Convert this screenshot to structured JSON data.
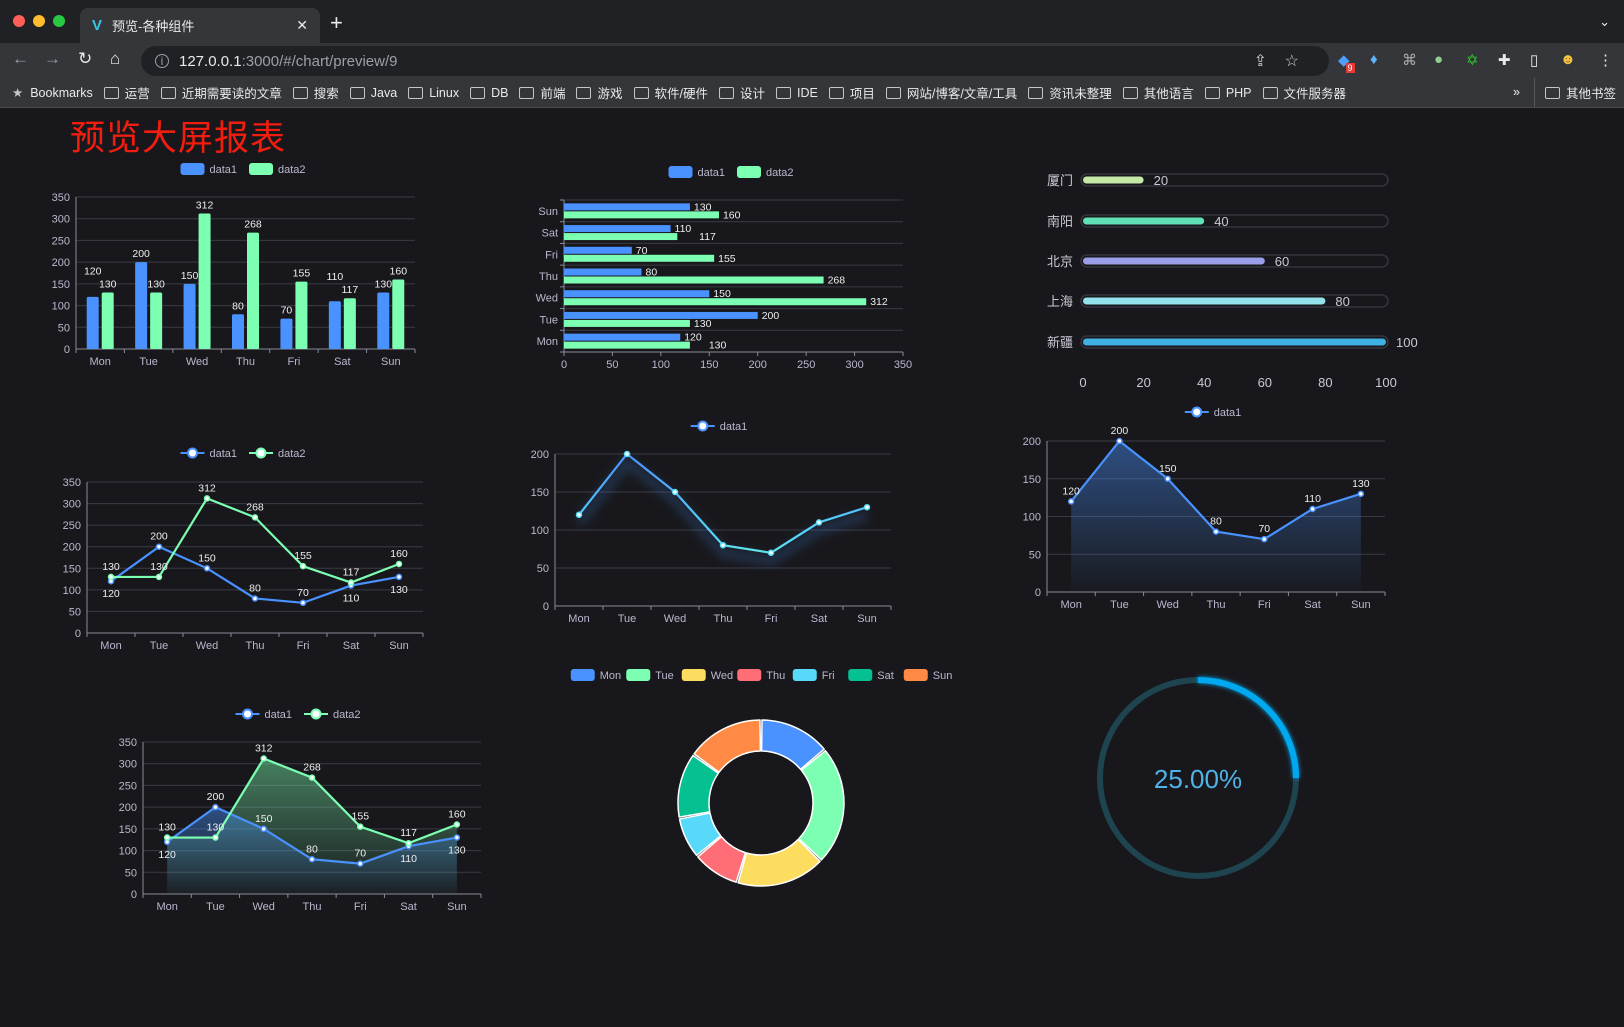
{
  "browser": {
    "tab_title": "预览-各种组件",
    "tab_icon": "vue-logo-icon",
    "url_host": "127.0.0.1",
    "url_rest": ":3000/#/chart/preview/9",
    "extension_badge": "9",
    "bookmarks": [
      "Bookmarks",
      "运营",
      "近期需要读的文章",
      "搜索",
      "Java",
      "Linux",
      "DB",
      "前端",
      "游戏",
      "软件/硬件",
      "设计",
      "IDE",
      "项目",
      "网站/博客/文章/工具",
      "资讯未整理",
      "其他语言",
      "PHP",
      "文件服务器"
    ],
    "bookmarks_overflow": "»",
    "other_bookmarks": "其他书签"
  },
  "page": {
    "title": "预览大屏报表",
    "title_color": "#f21d0f"
  },
  "colors": {
    "data1": "#4992ff",
    "data2": "#7cffb2",
    "pie": [
      "#4992ff",
      "#7cffb2",
      "#fddd60",
      "#ff6e76",
      "#58d9f9",
      "#05c091",
      "#ff8a45"
    ]
  },
  "chart_data": [
    {
      "type": "bar",
      "legend": [
        "data1",
        "data2"
      ],
      "categories": [
        "Mon",
        "Tue",
        "Wed",
        "Thu",
        "Fri",
        "Sat",
        "Sun"
      ],
      "series": [
        {
          "name": "data1",
          "values": [
            120,
            200,
            150,
            80,
            70,
            110,
            130
          ]
        },
        {
          "name": "data2",
          "values": [
            130,
            130,
            312,
            268,
            155,
            117,
            160
          ]
        }
      ],
      "ylim": [
        0,
        350
      ],
      "yticks": [
        "0",
        "50",
        "100",
        "150",
        "200",
        "250",
        "300",
        "350"
      ],
      "grid": true,
      "data_labels": true,
      "legend_position": "top"
    },
    {
      "type": "bar",
      "orientation": "horizontal",
      "legend": [
        "data1",
        "data2"
      ],
      "categories": [
        "Mon",
        "Tue",
        "Wed",
        "Thu",
        "Fri",
        "Sat",
        "Sun"
      ],
      "series": [
        {
          "name": "data1",
          "values": [
            120,
            200,
            150,
            80,
            70,
            110,
            130
          ]
        },
        {
          "name": "data2",
          "values": [
            130,
            130,
            312,
            268,
            155,
            117,
            160
          ]
        }
      ],
      "xlim": [
        0,
        350
      ],
      "xticks": [
        "0",
        "50",
        "100",
        "150",
        "200",
        "250",
        "300",
        "350"
      ],
      "grid": true,
      "data_labels": true,
      "legend_position": "top"
    },
    {
      "type": "bar",
      "orientation": "horizontal",
      "variant": "progress",
      "categories": [
        "厦门",
        "南阳",
        "北京",
        "上海",
        "新疆"
      ],
      "values": [
        20,
        40,
        60,
        80,
        100
      ],
      "xlim": [
        0,
        100
      ],
      "xticks": [
        "0",
        "20",
        "40",
        "60",
        "80",
        "100"
      ],
      "colors": [
        "#c5e8a6",
        "#5fe0b5",
        "#9a9ee8",
        "#93e3ec",
        "#3fb1e3"
      ]
    },
    {
      "type": "line",
      "legend": [
        "data1",
        "data2"
      ],
      "categories": [
        "Mon",
        "Tue",
        "Wed",
        "Thu",
        "Fri",
        "Sat",
        "Sun"
      ],
      "series": [
        {
          "name": "data1",
          "values": [
            120,
            200,
            150,
            80,
            70,
            110,
            130
          ]
        },
        {
          "name": "data2",
          "values": [
            130,
            130,
            312,
            268,
            155,
            117,
            160
          ]
        }
      ],
      "ylim": [
        0,
        350
      ],
      "yticks": [
        "0",
        "50",
        "100",
        "150",
        "200",
        "250",
        "300",
        "350"
      ],
      "grid": true,
      "data_labels": true,
      "legend_position": "top"
    },
    {
      "type": "line",
      "legend": [
        "data1"
      ],
      "categories": [
        "Mon",
        "Tue",
        "Wed",
        "Thu",
        "Fri",
        "Sat",
        "Sun"
      ],
      "series": [
        {
          "name": "data1",
          "values": [
            120,
            200,
            150,
            80,
            70,
            110,
            130
          ]
        }
      ],
      "ylim": [
        0,
        200
      ],
      "yticks": [
        "0",
        "50",
        "100",
        "150",
        "200"
      ],
      "grid": true,
      "data_labels": false,
      "gradient_line": true,
      "legend_position": "top"
    },
    {
      "type": "area",
      "legend": [
        "data1"
      ],
      "categories": [
        "Mon",
        "Tue",
        "Wed",
        "Thu",
        "Fri",
        "Sat",
        "Sun"
      ],
      "series": [
        {
          "name": "data1",
          "values": [
            120,
            200,
            150,
            80,
            70,
            110,
            130
          ]
        }
      ],
      "ylim": [
        0,
        200
      ],
      "yticks": [
        "0",
        "50",
        "100",
        "150",
        "200"
      ],
      "grid": true,
      "data_labels": true,
      "legend_position": "top"
    },
    {
      "type": "area",
      "legend": [
        "data1",
        "data2"
      ],
      "categories": [
        "Mon",
        "Tue",
        "Wed",
        "Thu",
        "Fri",
        "Sat",
        "Sun"
      ],
      "series": [
        {
          "name": "data1",
          "values": [
            120,
            200,
            150,
            80,
            70,
            110,
            130
          ]
        },
        {
          "name": "data2",
          "values": [
            130,
            130,
            312,
            268,
            155,
            117,
            160
          ]
        }
      ],
      "ylim": [
        0,
        350
      ],
      "yticks": [
        "0",
        "50",
        "100",
        "150",
        "200",
        "250",
        "300",
        "350"
      ],
      "grid": true,
      "data_labels": true,
      "legend_position": "top"
    },
    {
      "type": "pie",
      "variant": "donut",
      "legend": [
        "Mon",
        "Tue",
        "Wed",
        "Thu",
        "Fri",
        "Sat",
        "Sun"
      ],
      "values": [
        120,
        200,
        150,
        80,
        70,
        110,
        130
      ],
      "legend_position": "top"
    },
    {
      "type": "gauge",
      "variant": "progress-ring",
      "value": 25,
      "label": "25.00%",
      "color": "#00a8f0",
      "track_color": "#1e4450"
    }
  ]
}
